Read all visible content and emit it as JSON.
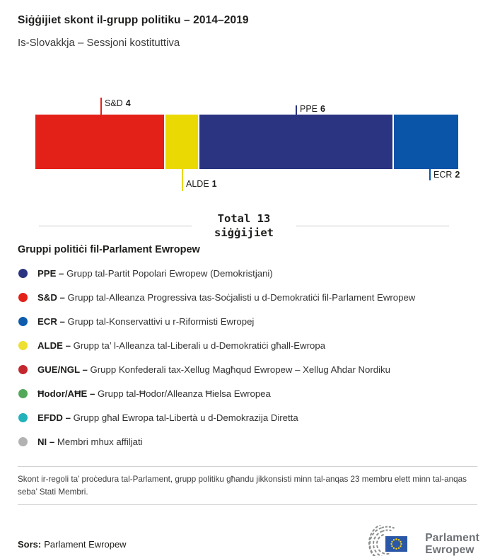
{
  "header": {
    "title": "Siġġijiet skont il-grupp politiku – 2014–2019",
    "subtitle": "Is-Slovakkja – Sessjoni kostituttiva"
  },
  "chart_data": {
    "type": "bar",
    "orientation": "horizontal-stacked",
    "title": "Siġġijiet skont il-grupp politiku – 2014–2019",
    "total_seats": 13,
    "total_label_line1": "Total 13",
    "total_label_line2": "siġġijiet",
    "categories": [
      "S&D",
      "ALDE",
      "PPE",
      "ECR"
    ],
    "values": [
      4,
      1,
      6,
      2
    ],
    "segments": [
      {
        "group": "S&D",
        "seats": 4,
        "color": "#e32119",
        "label_side": "top"
      },
      {
        "group": "ALDE",
        "seats": 1,
        "color": "#ebd904",
        "label_side": "bottom"
      },
      {
        "group": "PPE",
        "seats": 6,
        "color": "#2a3480",
        "label_side": "top"
      },
      {
        "group": "ECR",
        "seats": 2,
        "color": "#0a55a8",
        "label_side": "bottom"
      }
    ],
    "labels": {
      "sd": {
        "name": "S&D",
        "value": "4"
      },
      "ppe": {
        "name": "PPE",
        "value": "6"
      },
      "alde": {
        "name": "ALDE",
        "value": "1"
      },
      "ecr": {
        "name": "ECR",
        "value": "2"
      }
    }
  },
  "legend": {
    "heading": "Gruppi politiċi fil-Parlament Ewropew",
    "items": [
      {
        "abbr": "PPE –",
        "name": "Grupp tal-Partit Popolari Ewropew (Demokristjani)",
        "color": "#2a3480"
      },
      {
        "abbr": "S&D –",
        "name": "Grupp tal-Alleanza Progressiva tas-Soċjalisti u d-Demokratiċi fil-Parlament Ewropew",
        "color": "#e32119"
      },
      {
        "abbr": "ECR –",
        "name": "Grupp tal-Konservattivi u r-Riformisti Ewropej",
        "color": "#0f5cad"
      },
      {
        "abbr": "ALDE –",
        "name": "Grupp ta’ l-Alleanza tal-Liberali u d-Demokratiċi għall-Ewropa",
        "color": "#ede032"
      },
      {
        "abbr": "GUE/NGL –",
        "name": "Grupp Konfederali tax-Xellug Magħqud Ewropew – Xellug Aħdar Nordiku",
        "color": "#c4272e"
      },
      {
        "abbr": "Ħodor/AĦE –",
        "name": "Grupp tal-Ħodor/Alleanza Ħielsa Ewropea",
        "color": "#53a859"
      },
      {
        "abbr": "EFDD –",
        "name": "Grupp għal Ewropa tal-Libertà u d-Demokrazija Diretta",
        "color": "#21b2ba"
      },
      {
        "abbr": "NI –",
        "name": "Membri mhux affiljati",
        "color": "#b2b2b2"
      }
    ]
  },
  "footnote": {
    "text": "Skont ir-regoli ta’ proċedura tal-Parlament, grupp politiku għandu jikkonsisti minn tal-anqas 23 membru elett minn tal-anqas seba’ Stati Membri."
  },
  "source": {
    "label": "Sors:",
    "value": "Parlament Ewropew"
  },
  "logo": {
    "line1": "Parlament",
    "line2": "Ewropew",
    "flag_color": "#2a57a7",
    "star_color": "#f5d21a",
    "arc_color": "#8b8e90"
  }
}
